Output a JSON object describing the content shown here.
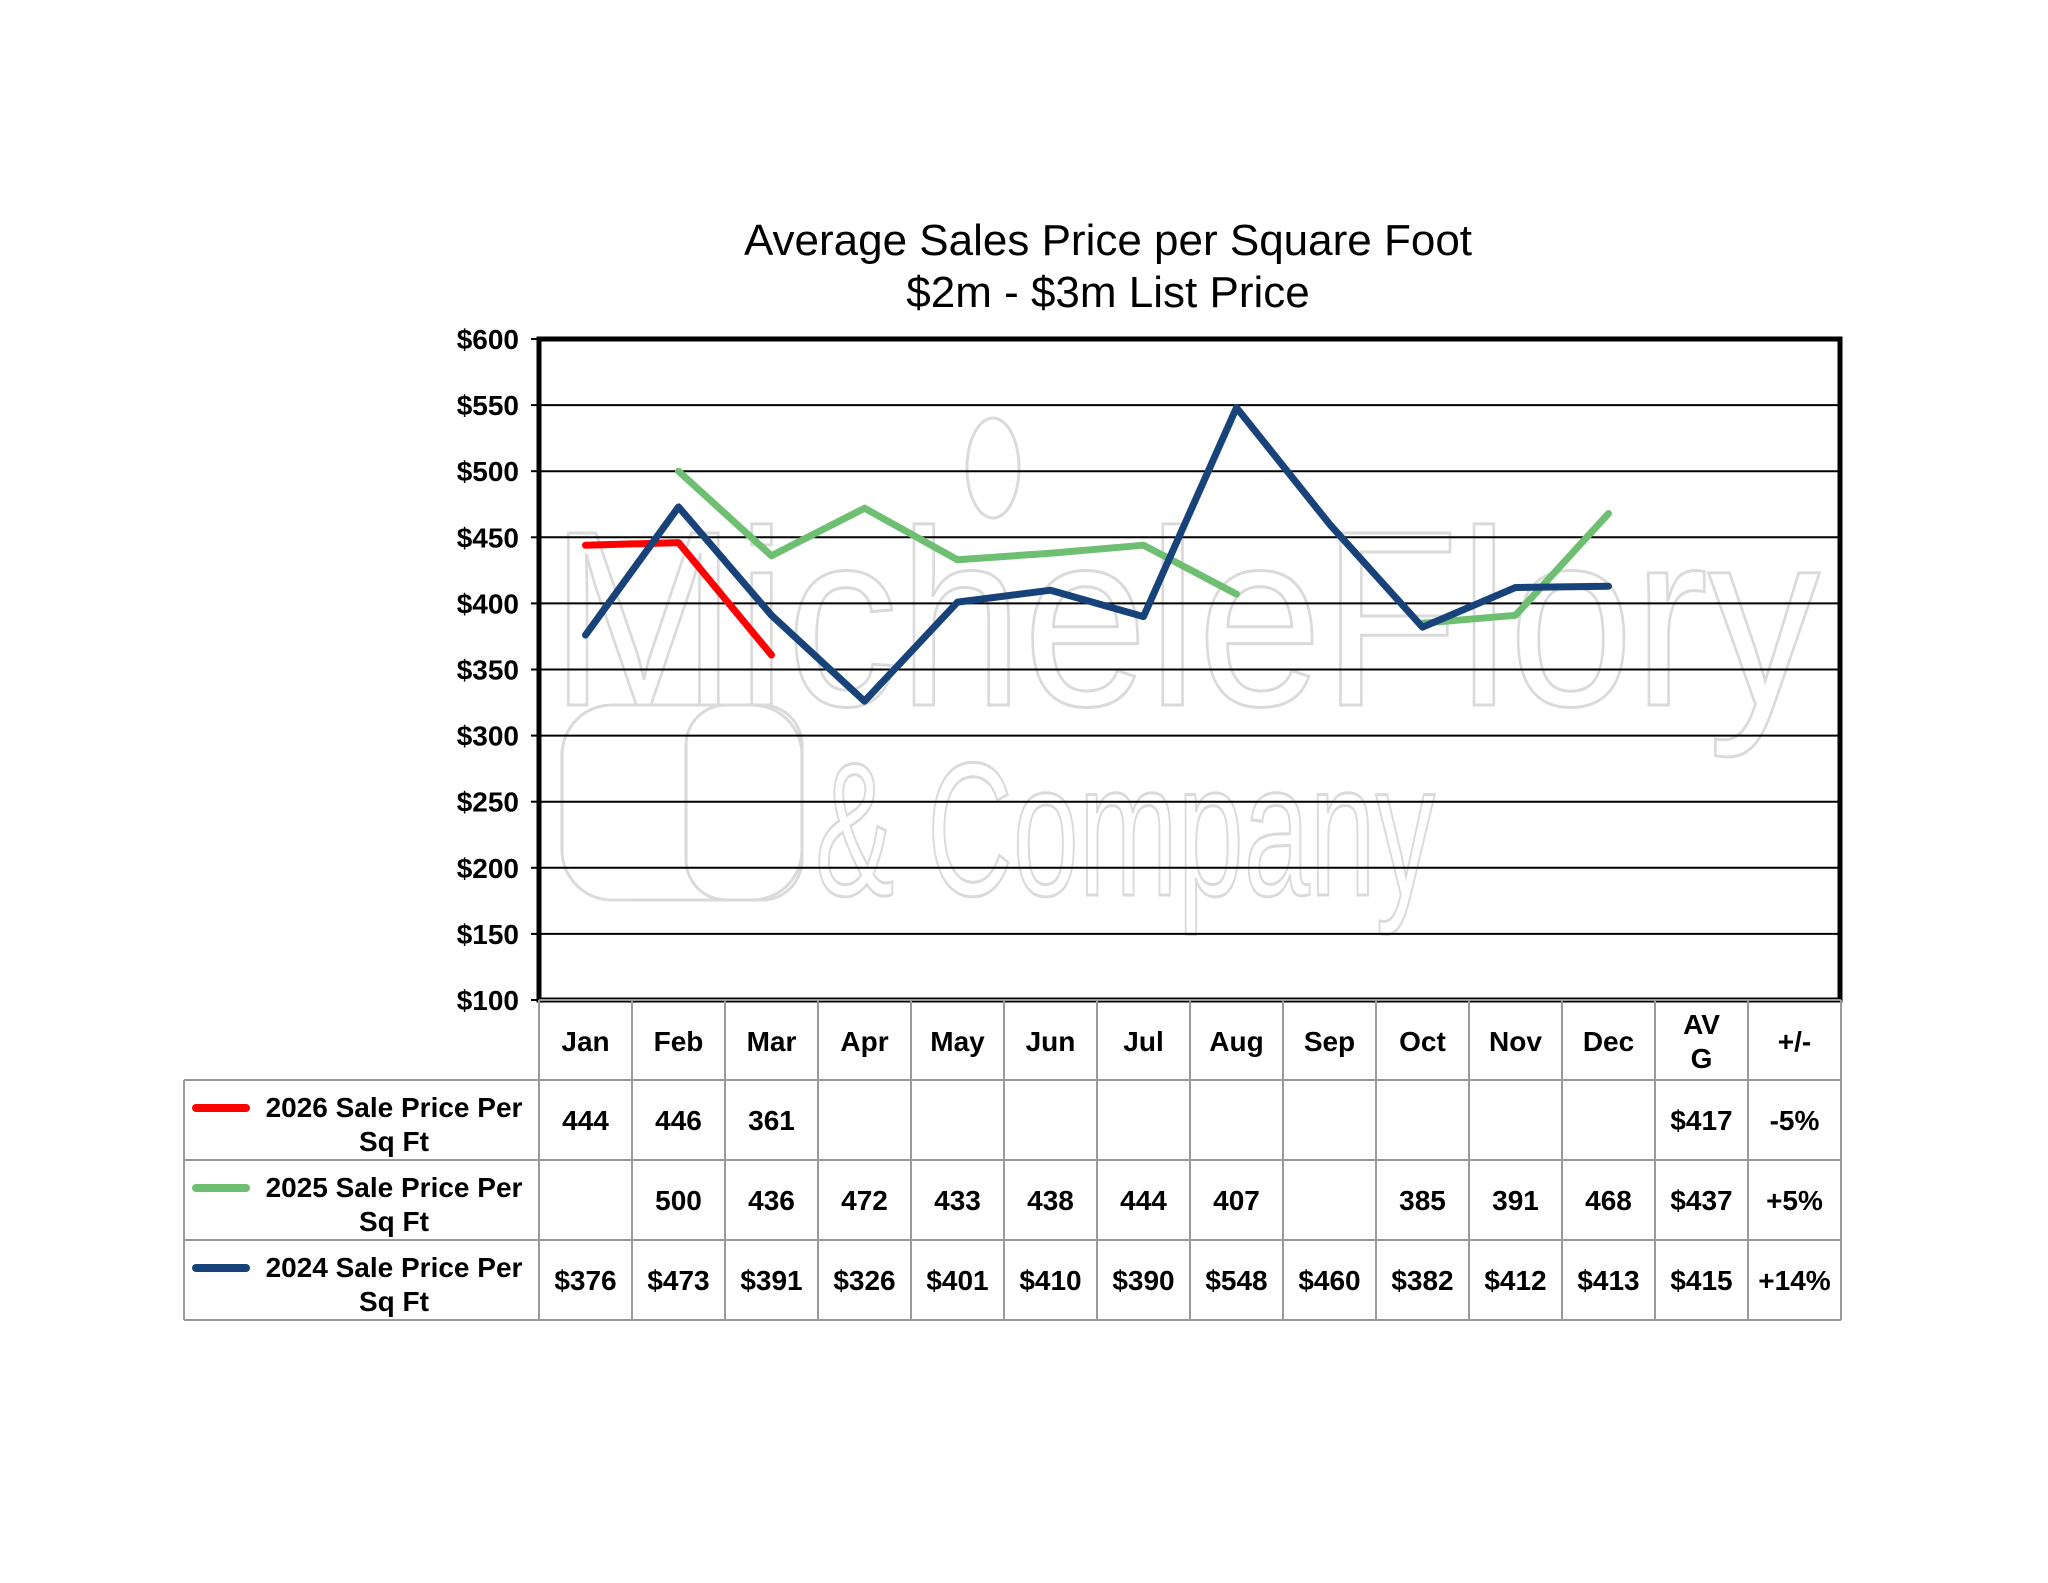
{
  "chart_data": {
    "type": "line",
    "title": "Average Sales Price per Square Foot",
    "subtitle": "$2m - $3m List Price",
    "categories": [
      "Jan",
      "Feb",
      "Mar",
      "Apr",
      "May",
      "Jun",
      "Jul",
      "Aug",
      "Sep",
      "Oct",
      "Nov",
      "Dec"
    ],
    "table_headers": [
      "AV\nG",
      "+/-"
    ],
    "y_tick_labels": [
      "$600",
      "$550",
      "$500",
      "$450",
      "$400",
      "$350",
      "$300",
      "$250",
      "$200",
      "$150",
      "$100"
    ],
    "ylim": [
      100,
      600
    ],
    "y_step": 50,
    "grid": true,
    "watermark": {
      "line1": "MicheleFlory",
      "line2": "& Company"
    },
    "series": [
      {
        "name": "2026 Sale Price Per Sq Ft",
        "color": "#ff0000",
        "values": [
          444,
          446,
          361,
          null,
          null,
          null,
          null,
          null,
          null,
          null,
          null,
          null
        ],
        "cells": [
          "444",
          "446",
          "361",
          "",
          "",
          "",
          "",
          "",
          "",
          "",
          "",
          ""
        ],
        "avg": "$417",
        "change": "-5%"
      },
      {
        "name": "2025 Sale Price Per Sq Ft",
        "color": "#6fbf73",
        "values": [
          null,
          500,
          436,
          472,
          433,
          438,
          444,
          407,
          null,
          385,
          391,
          468
        ],
        "cells": [
          "",
          "500",
          "436",
          "472",
          "433",
          "438",
          "444",
          "407",
          "",
          "385",
          "391",
          "468"
        ],
        "avg": "$437",
        "change": "+5%"
      },
      {
        "name": "2024 Sale Price Per Sq Ft",
        "color": "#17427a",
        "values": [
          376,
          473,
          391,
          326,
          401,
          410,
          390,
          548,
          460,
          382,
          412,
          413
        ],
        "cells": [
          "$376",
          "$473",
          "$391",
          "$326",
          "$401",
          "$410",
          "$390",
          "$548",
          "$460",
          "$382",
          "$412",
          "$413"
        ],
        "avg": "$415",
        "change": "+14%"
      }
    ]
  }
}
